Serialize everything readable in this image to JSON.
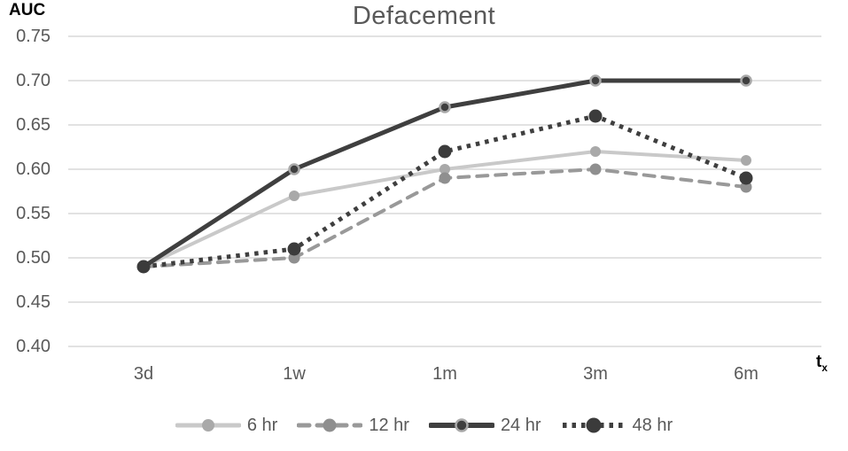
{
  "chart": {
    "title": "Defacement",
    "y_axis_label": "AUC",
    "x_axis_label_main": "t",
    "x_axis_label_sub": "x"
  },
  "chart_data": {
    "type": "line",
    "title": "Defacement",
    "ylabel": "AUC",
    "xlabel": "t_x",
    "categories": [
      "3d",
      "1w",
      "1m",
      "3m",
      "6m"
    ],
    "ylim": [
      0.4,
      0.75
    ],
    "ytick_step": 0.05,
    "ytick_labels": [
      "0.75",
      "0.70",
      "0.65",
      "0.60",
      "0.55",
      "0.50",
      "0.45",
      "0.40"
    ],
    "grid": true,
    "legend_position": "bottom",
    "series": [
      {
        "name": "6 hr",
        "values": [
          0.49,
          0.57,
          0.6,
          0.62,
          0.61
        ],
        "color": "#c9c9c9",
        "marker_color": "#a9a9a9",
        "line_style": "solid"
      },
      {
        "name": "12 hr",
        "values": [
          0.49,
          0.5,
          0.59,
          0.6,
          0.58
        ],
        "color": "#999999",
        "marker_color": "#8f8f8f",
        "line_style": "dashed"
      },
      {
        "name": "24 hr",
        "values": [
          0.49,
          0.6,
          0.67,
          0.7,
          0.7
        ],
        "color": "#3f3f3f",
        "marker_color": "#3f3f3f",
        "marker_ring": "#a8a8a8",
        "line_style": "solid"
      },
      {
        "name": "48 hr",
        "values": [
          0.49,
          0.51,
          0.62,
          0.66,
          0.59
        ],
        "color": "#3f3f3f",
        "marker_color": "#3b3b3b",
        "line_style": "dotted"
      }
    ],
    "colors": {
      "grid": "#d9d9d9",
      "axis_text": "#595959",
      "title_text": "#595959",
      "axis_label_text": "#000000",
      "background": "#ffffff"
    }
  }
}
